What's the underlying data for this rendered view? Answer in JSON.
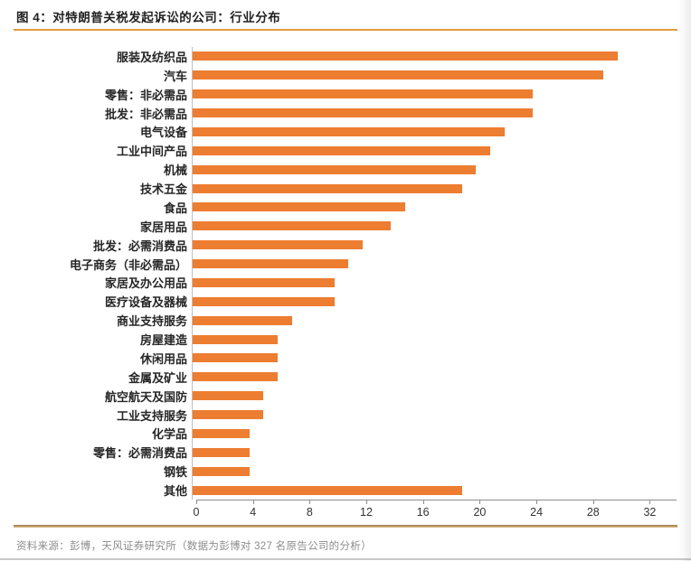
{
  "header": {
    "title": "图 4：对特朗普关税发起诉讼的公司：行业分布"
  },
  "chart_data": {
    "type": "bar",
    "orientation": "horizontal",
    "title": "对特朗普关税发起诉讼的公司：行业分布",
    "categories": [
      "服装及纺织品",
      "汽车",
      "零售：非必需品",
      "批发：非必需品",
      "电气设备",
      "工业中间产品",
      "机械",
      "技术五金",
      "食品",
      "家居用品",
      "批发：必需消费品",
      "电子商务（非必需品）",
      "家居及办公用品",
      "医疗设备及器械",
      "商业支持服务",
      "房屋建造",
      "休闲用品",
      "金属及矿业",
      "航空航天及国防",
      "工业支持服务",
      "化学品",
      "零售：必需消费品",
      "钢铁",
      "其他"
    ],
    "values": [
      30,
      29,
      24,
      24,
      22,
      21,
      20,
      19,
      15,
      14,
      12,
      11,
      10,
      10,
      7,
      6,
      6,
      6,
      5,
      5,
      4,
      4,
      4,
      19
    ],
    "xlabel": "",
    "ylabel": "",
    "x_ticks": [
      0,
      4,
      8,
      12,
      16,
      20,
      24,
      28,
      32
    ],
    "xlim": [
      0,
      32
    ],
    "grid": false,
    "legend": null
  },
  "footer": {
    "source": "资料来源：彭博，天风证券研究所（数据为彭博对 327 名原告公司的分析）"
  },
  "colors": {
    "bar": "#ED7D31",
    "title_rule": "#E39A3D",
    "footer_rule_top": "#9C7A45",
    "footer_rule_bottom": "#DCBC8A",
    "bottom_rule": "#C9C9C9",
    "axis": "#8C8C8C"
  }
}
